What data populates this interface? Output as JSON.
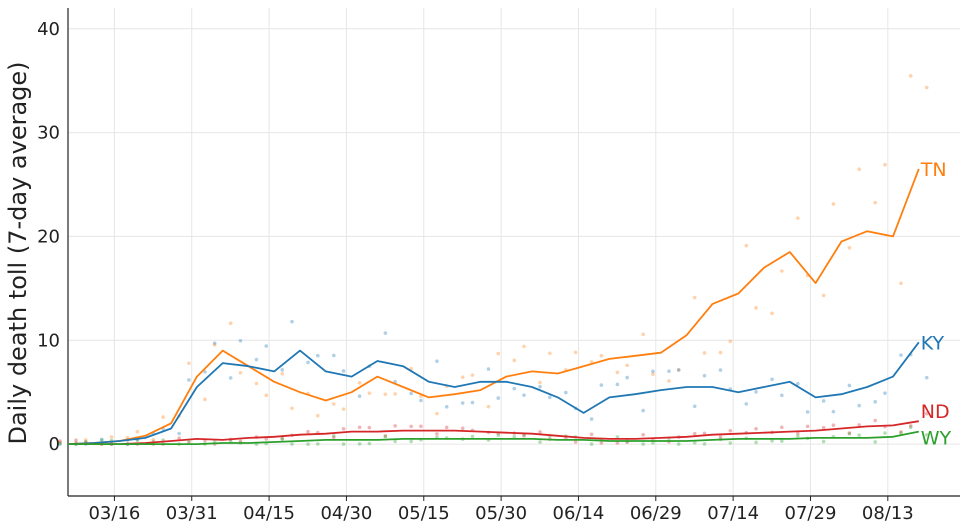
{
  "chart_data": {
    "type": "line",
    "title": "",
    "xlabel": "",
    "ylabel": "Daily death toll (7-day average)",
    "x_tick_labels": [
      "03/16",
      "03/31",
      "04/15",
      "04/30",
      "05/15",
      "05/30",
      "06/14",
      "06/29",
      "07/14",
      "07/29",
      "08/13"
    ],
    "y_ticks": [
      0,
      10,
      20,
      30,
      40
    ],
    "ylim": [
      -5,
      42
    ],
    "x_range": [
      "03/07",
      "08/27"
    ],
    "grid": true,
    "legend": "labels at line ends",
    "markers": "daily values shown as faint dots behind each 7-day average line",
    "x": [
      "03/07",
      "03/12",
      "03/17",
      "03/22",
      "03/27",
      "04/01",
      "04/06",
      "04/11",
      "04/16",
      "04/21",
      "04/26",
      "05/01",
      "05/06",
      "05/11",
      "05/16",
      "05/21",
      "05/26",
      "05/31",
      "06/05",
      "06/10",
      "06/15",
      "06/20",
      "06/25",
      "06/30",
      "07/05",
      "07/10",
      "07/15",
      "07/20",
      "07/25",
      "07/30",
      "08/04",
      "08/09",
      "08/14",
      "08/19"
    ],
    "series": [
      {
        "name": "TN",
        "color": "#ff7f0e",
        "values": [
          0,
          0.1,
          0.3,
          0.8,
          2.0,
          6.5,
          9.0,
          7.5,
          6.0,
          5.0,
          4.2,
          5.0,
          6.5,
          5.5,
          4.5,
          4.8,
          5.2,
          6.5,
          7.0,
          6.8,
          7.5,
          8.2,
          8.5,
          8.8,
          10.5,
          13.5,
          14.5,
          17.0,
          18.5,
          15.5,
          19.5,
          20.5,
          20.0,
          26.5
        ]
      },
      {
        "name": "KY",
        "color": "#1f77b4",
        "values": [
          0,
          0.1,
          0.3,
          0.6,
          1.5,
          5.5,
          7.8,
          7.5,
          7.0,
          9.0,
          7.0,
          6.5,
          8.0,
          7.5,
          6.0,
          5.5,
          6.0,
          6.0,
          5.5,
          4.5,
          3.0,
          4.5,
          4.8,
          5.2,
          5.5,
          5.5,
          5.0,
          5.5,
          6.0,
          4.5,
          4.8,
          5.5,
          6.5,
          9.8
        ]
      },
      {
        "name": "ND",
        "color": "#d62728",
        "values": [
          0,
          0,
          0,
          0.1,
          0.3,
          0.5,
          0.4,
          0.6,
          0.7,
          0.9,
          1.0,
          1.2,
          1.2,
          1.3,
          1.3,
          1.3,
          1.2,
          1.1,
          1.0,
          0.8,
          0.6,
          0.5,
          0.5,
          0.6,
          0.7,
          0.9,
          1.0,
          1.1,
          1.2,
          1.3,
          1.5,
          1.7,
          1.8,
          2.2
        ]
      },
      {
        "name": "WY",
        "color": "#2ca02c",
        "values": [
          0,
          0,
          0,
          0,
          0,
          0,
          0.1,
          0.1,
          0.2,
          0.3,
          0.4,
          0.4,
          0.4,
          0.5,
          0.5,
          0.5,
          0.5,
          0.5,
          0.5,
          0.4,
          0.4,
          0.3,
          0.3,
          0.3,
          0.3,
          0.4,
          0.5,
          0.5,
          0.5,
          0.6,
          0.6,
          0.6,
          0.7,
          1.2
        ]
      }
    ]
  }
}
